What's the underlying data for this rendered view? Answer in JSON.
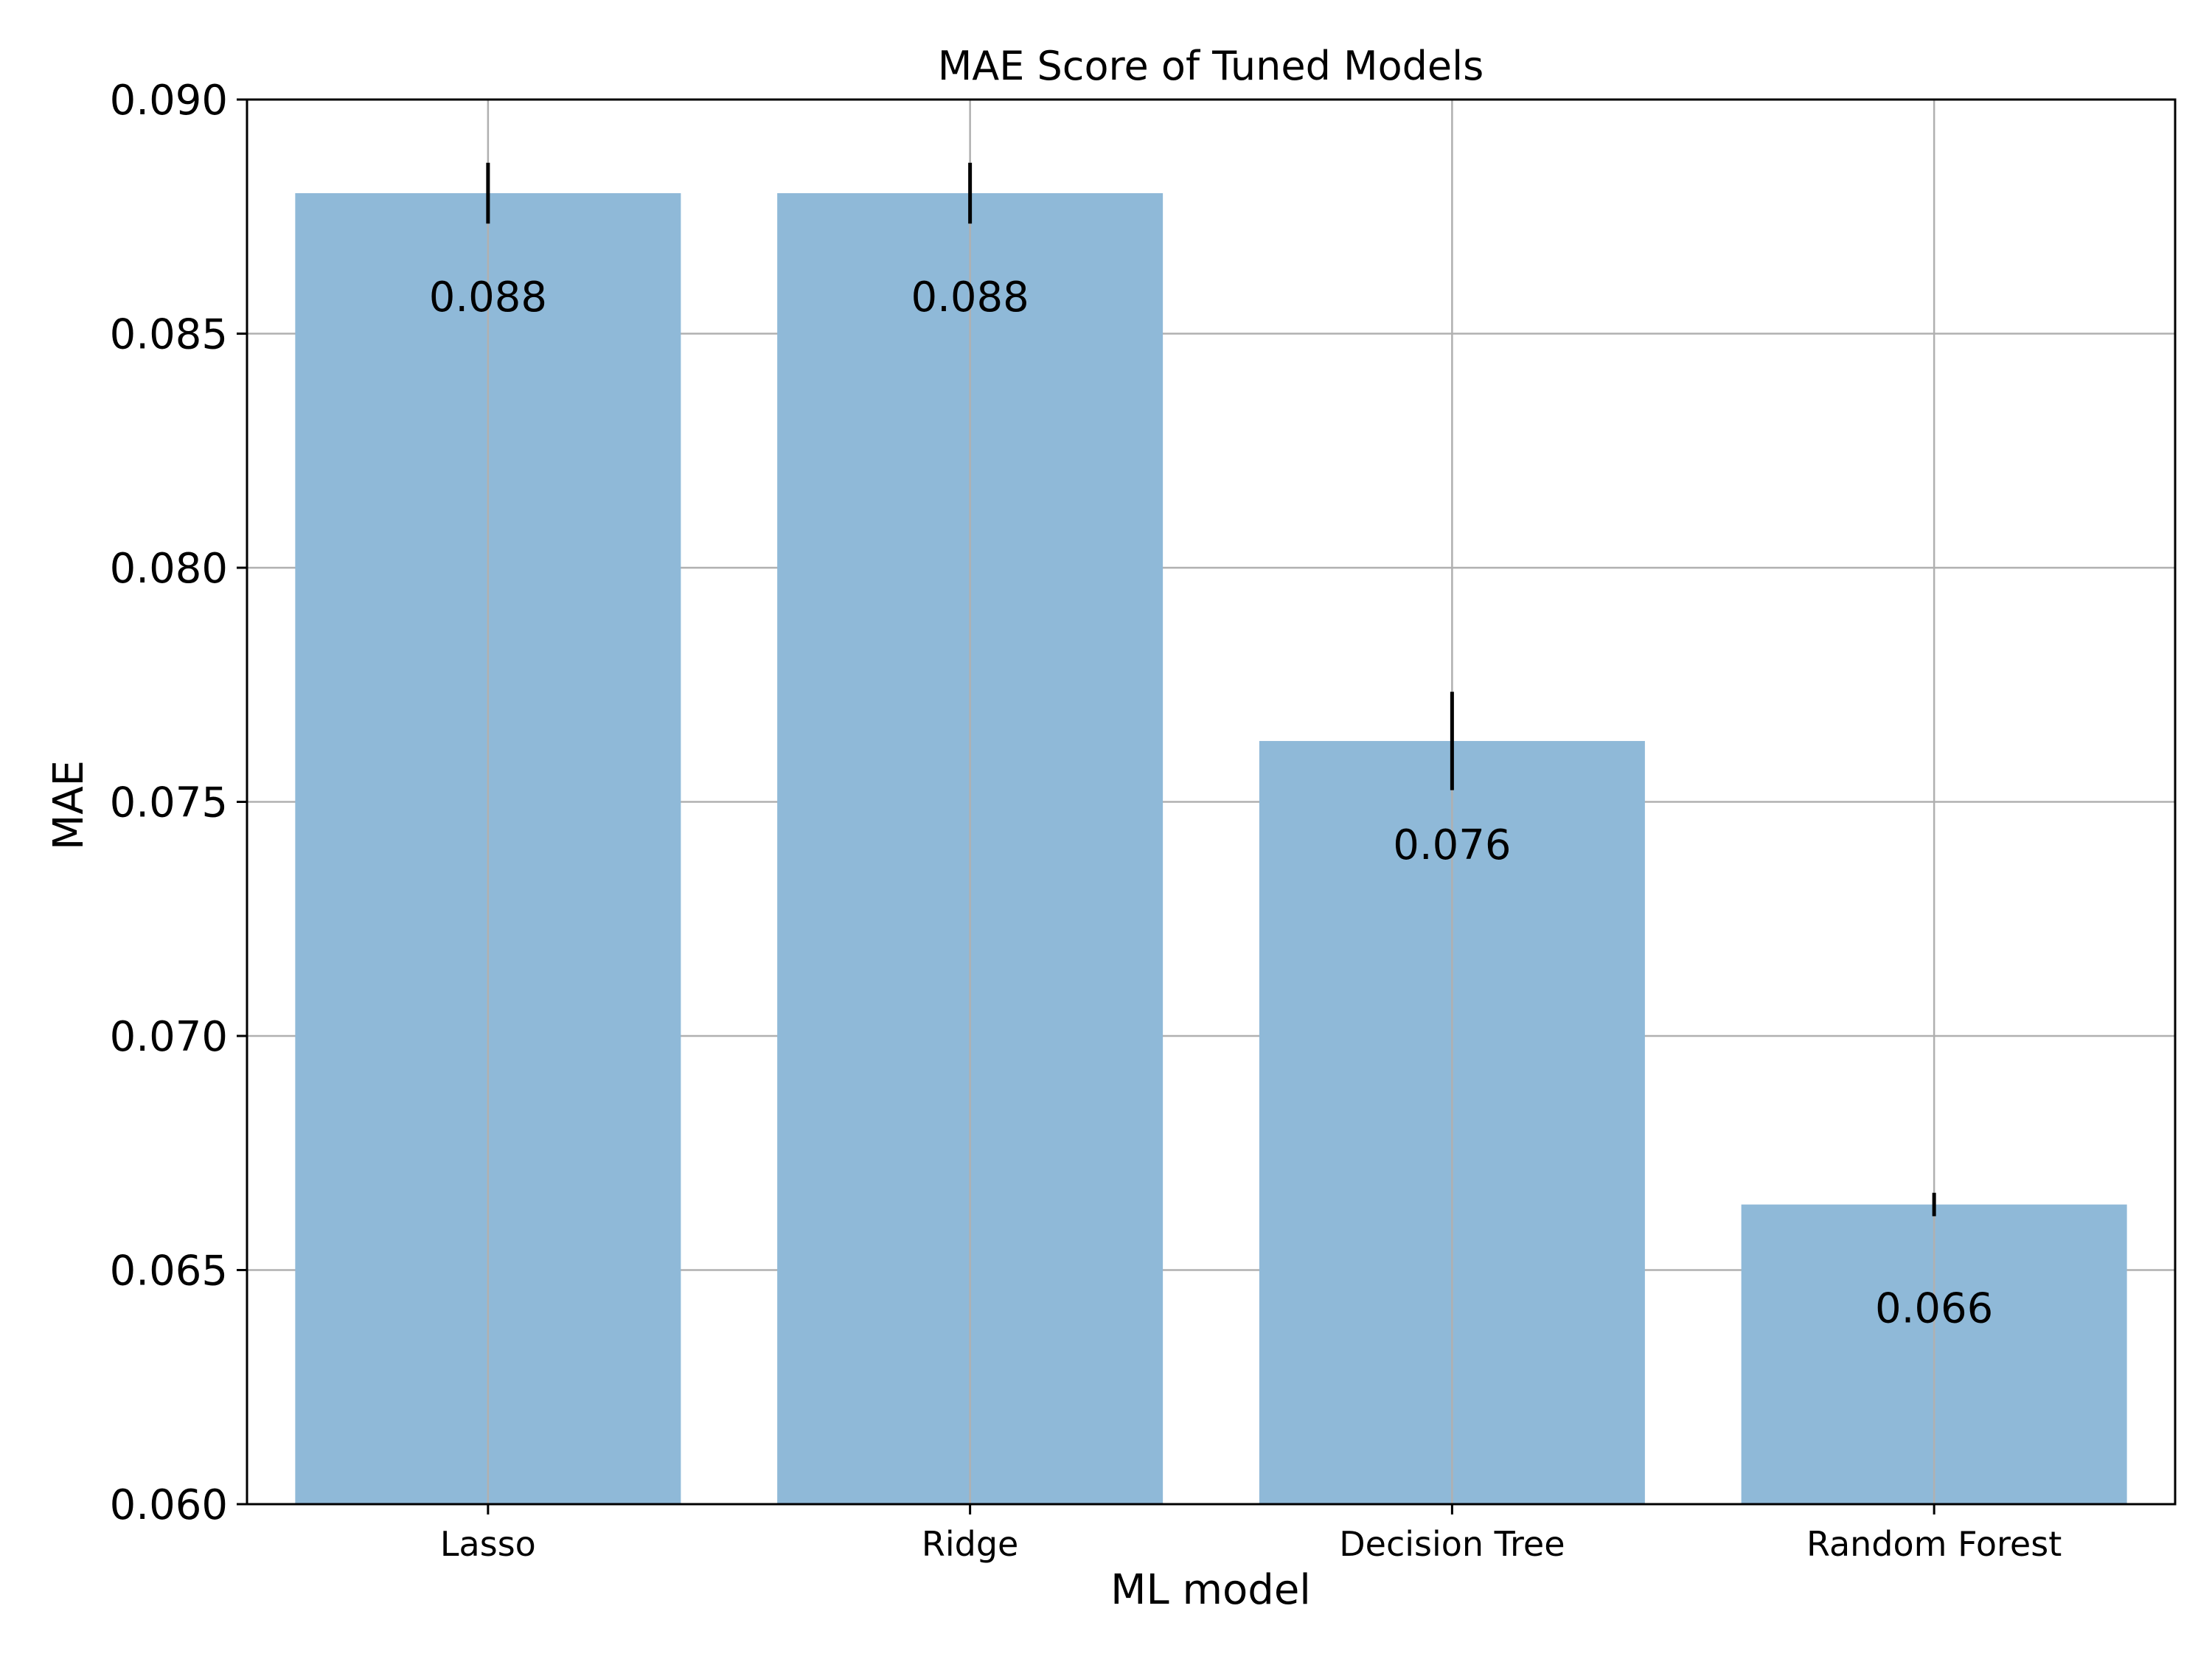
{
  "chart_data": {
    "type": "bar",
    "title": "MAE Score of Tuned Models",
    "xlabel": "ML model",
    "ylabel": "MAE",
    "categories": [
      "Lasso",
      "Ridge",
      "Decision Tree",
      "Random Forest"
    ],
    "values": [
      0.088,
      0.088,
      0.0763,
      0.0664
    ],
    "error": [
      0.00065,
      0.00065,
      0.00105,
      0.00025
    ],
    "value_labels": [
      "0.088",
      "0.088",
      "0.076",
      "0.066"
    ],
    "ylim": [
      0.06,
      0.09
    ],
    "yticks": [
      0.06,
      0.065,
      0.07,
      0.075,
      0.08,
      0.085,
      0.09
    ],
    "ytick_labels": [
      "0.060",
      "0.065",
      "0.070",
      "0.075",
      "0.080",
      "0.085",
      "0.090"
    ],
    "grid": true,
    "bar_color": "#8fb9d8",
    "grid_color": "#b0b0b0",
    "error_color": "#000000"
  }
}
